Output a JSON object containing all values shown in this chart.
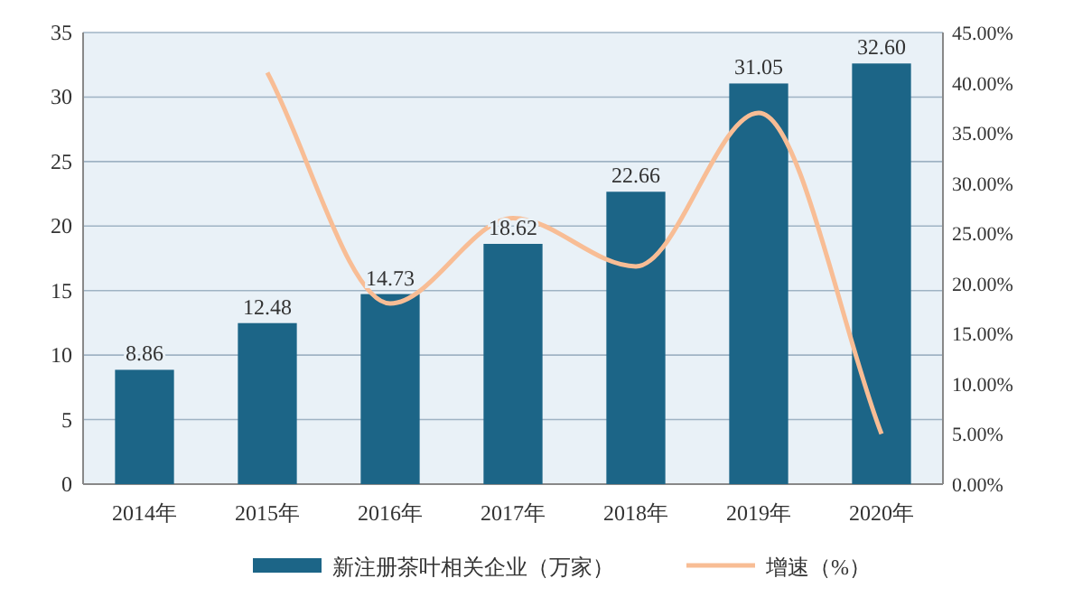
{
  "chart_data": {
    "type": "bar",
    "categories": [
      "2014年",
      "2015年",
      "2016年",
      "2017年",
      "2018年",
      "2019年",
      "2020年"
    ],
    "series": [
      {
        "name": "新注册茶叶相关企业（万家）",
        "color": "#1c6587",
        "values": [
          8.86,
          12.48,
          14.73,
          18.62,
          22.66,
          31.05,
          32.6
        ],
        "value_labels": [
          "8.86",
          "12.48",
          "14.73",
          "18.62",
          "22.66",
          "31.05",
          "32.60"
        ]
      },
      {
        "name": "增速（%）",
        "type": "line",
        "axis": "y2",
        "color": "#f8bd95",
        "values": [
          null,
          41.0,
          18.0,
          26.5,
          21.7,
          37.0,
          5.0
        ]
      }
    ],
    "ylim": [
      0,
      35
    ],
    "yticks": [
      0,
      5,
      10,
      15,
      20,
      25,
      30,
      35
    ],
    "y2lim": [
      0,
      45
    ],
    "y2ticks": [
      {
        "value": 0,
        "label": "0.00%"
      },
      {
        "value": 5,
        "label": "5.00%"
      },
      {
        "value": 10,
        "label": "10.00%"
      },
      {
        "value": 15,
        "label": "15.00%"
      },
      {
        "value": 20,
        "label": "20.00%"
      },
      {
        "value": 25,
        "label": "25.00%"
      },
      {
        "value": 30,
        "label": "30.00%"
      },
      {
        "value": 35,
        "label": "35.00%"
      },
      {
        "value": 40,
        "label": "40.00%"
      },
      {
        "value": 45,
        "label": "45.00%"
      }
    ],
    "grid": "y",
    "legend": "bottom",
    "marker": "none",
    "line_style": "solid"
  }
}
